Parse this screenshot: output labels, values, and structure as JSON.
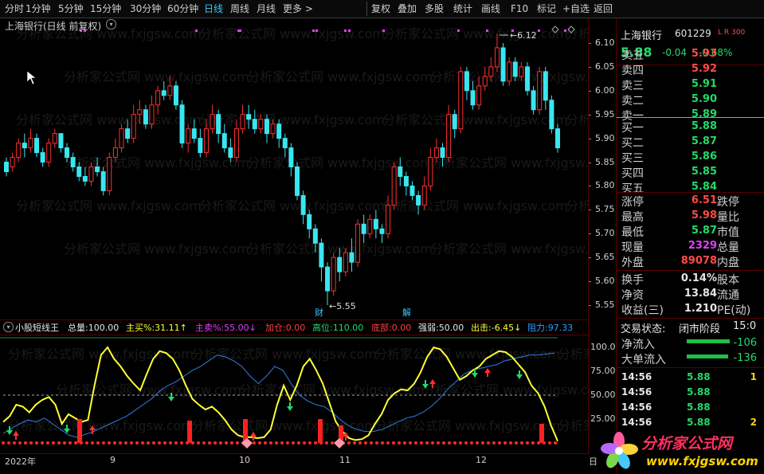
{
  "toolbar": {
    "periods": [
      "分时",
      "1分钟",
      "5分钟",
      "15分钟",
      "30分钟",
      "60分钟",
      "日线",
      "周线",
      "月线",
      "更多 >"
    ],
    "active_period": "日线",
    "actions": [
      "复权",
      "叠加",
      "多股",
      "统计",
      "画线",
      "F10",
      "标记",
      "+自选",
      "返回"
    ]
  },
  "chart": {
    "title": "上海银行(日线 前复权)",
    "price_axis": [
      "6.10",
      "6.05",
      "6.00",
      "5.95",
      "5.90",
      "5.85",
      "5.80",
      "5.75",
      "5.70",
      "5.65",
      "5.60",
      "5.55"
    ],
    "high_label": "6.12",
    "low_label": "5.55",
    "markers": [
      "财",
      "解"
    ],
    "watermark": "分析家公式网 www.fxjgsw.com"
  },
  "indicator": {
    "name": "小股短线王",
    "items": [
      {
        "label": "总量:",
        "value": "100.00"
      },
      {
        "label": "主买%:",
        "value": "31.11↑"
      },
      {
        "label": "主卖%:",
        "value": "55.00↓"
      },
      {
        "label": "加仓:",
        "value": "0.00"
      },
      {
        "label": "高位:",
        "value": "110.00"
      },
      {
        "label": "底部:",
        "value": "0.00"
      },
      {
        "label": "强弱:",
        "value": "50.00"
      },
      {
        "label": "出击:",
        "value": "-6.45↓"
      },
      {
        "label": "阻力:",
        "value": "97.33"
      }
    ],
    "axis": [
      "100.0",
      "75.00",
      "50.00",
      "25.00"
    ]
  },
  "xaxis": {
    "labels": [
      "2022年",
      "9",
      "10",
      "11",
      "12"
    ],
    "corner": "日"
  },
  "quote": {
    "name": "上海银行",
    "code": "601229",
    "badge": "L R 300",
    "price": "5.88",
    "change": "-0.04",
    "pct": "-0.68%",
    "asks": [
      {
        "label": "卖五",
        "price": "5.93"
      },
      {
        "label": "卖四",
        "price": "5.92"
      },
      {
        "label": "卖三",
        "price": "5.91"
      },
      {
        "label": "卖二",
        "price": "5.90"
      },
      {
        "label": "卖一",
        "price": "5.89"
      }
    ],
    "bids": [
      {
        "label": "买一",
        "price": "5.88"
      },
      {
        "label": "买二",
        "price": "5.87"
      },
      {
        "label": "买三",
        "price": "5.86"
      },
      {
        "label": "买四",
        "price": "5.85"
      },
      {
        "label": "买五",
        "price": "5.84"
      }
    ],
    "stats": [
      {
        "k": "涨停",
        "v": "6.51",
        "k2": "跌停"
      },
      {
        "k": "最高",
        "v": "5.98",
        "k2": "量比"
      },
      {
        "k": "最低",
        "v": "5.87",
        "k2": "市值"
      },
      {
        "k": "现量",
        "v": "2329",
        "k2": "总量"
      },
      {
        "k": "外盘",
        "v": "89078",
        "k2": "内盘"
      }
    ],
    "stats2": [
      {
        "k": "换手",
        "v": "0.14%",
        "k2": "股本"
      },
      {
        "k": "净资",
        "v": "13.84",
        "k2": "流通"
      },
      {
        "k": "收益(三)",
        "v": "1.210",
        "k2": "PE(动)"
      }
    ],
    "trade_state_label": "交易状态:",
    "trade_state": "闭市阶段",
    "trade_time": "15:0",
    "flows": [
      {
        "k": "净流入",
        "v": "-106"
      },
      {
        "k": "大单流入",
        "v": "-136"
      }
    ],
    "ticks": [
      {
        "t": "14:56",
        "p": "5.88",
        "n": "1"
      },
      {
        "t": "14:56",
        "p": "5.88",
        "n": ""
      },
      {
        "t": "14:56",
        "p": "5.88",
        "n": ""
      },
      {
        "t": "14:56",
        "p": "5.88",
        "n": "2"
      }
    ]
  },
  "logo": {
    "text": "分析家公式网",
    "url": "www.fxjgsw.com"
  },
  "colors": {
    "up": "#ff3030",
    "down": "#39e6f0",
    "yellow": "#ffff33",
    "blue": "#2f7fe0"
  }
}
